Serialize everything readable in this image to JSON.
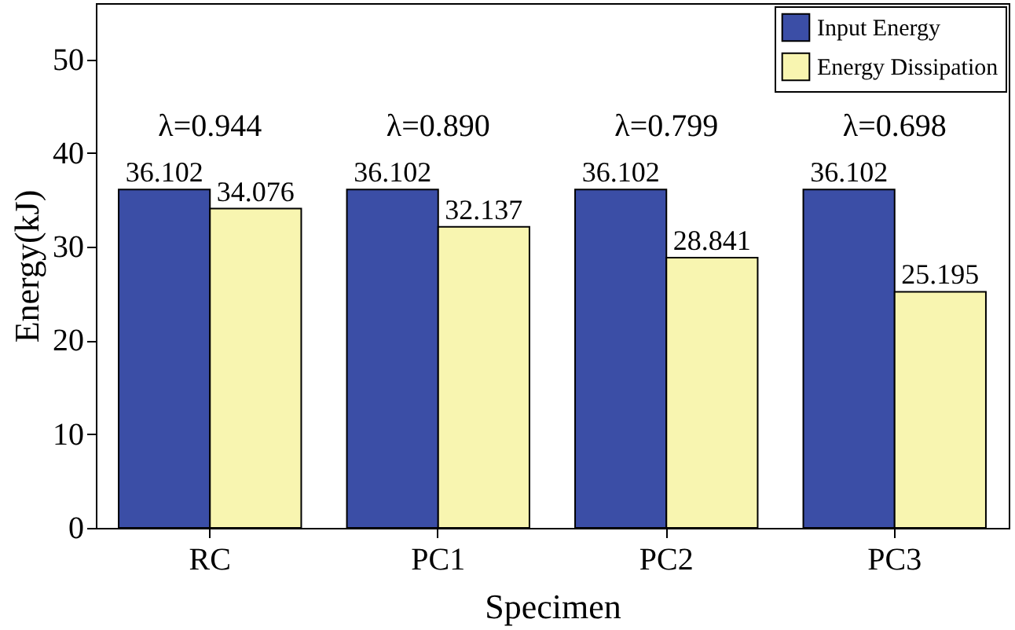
{
  "chart_data": {
    "type": "bar",
    "xlabel": "Specimen",
    "ylabel": "Energy(kJ)",
    "categories": [
      "RC",
      "PC1",
      "PC2",
      "PC3"
    ],
    "series": [
      {
        "name": "Input Energy",
        "color": "#3b4ea6",
        "values": [
          36.102,
          36.102,
          36.102,
          36.102
        ]
      },
      {
        "name": "Energy Dissipation",
        "color": "#f8f5b0",
        "values": [
          34.076,
          32.137,
          28.841,
          25.195
        ]
      }
    ],
    "ylim": [
      0,
      56
    ],
    "yticks": [
      0,
      10,
      20,
      30,
      40,
      50
    ],
    "grid": false,
    "legend": "top right",
    "data_labels": true,
    "annotations": [
      "λ=0.944",
      "λ=0.890",
      "λ=0.799",
      "λ=0.698"
    ]
  }
}
